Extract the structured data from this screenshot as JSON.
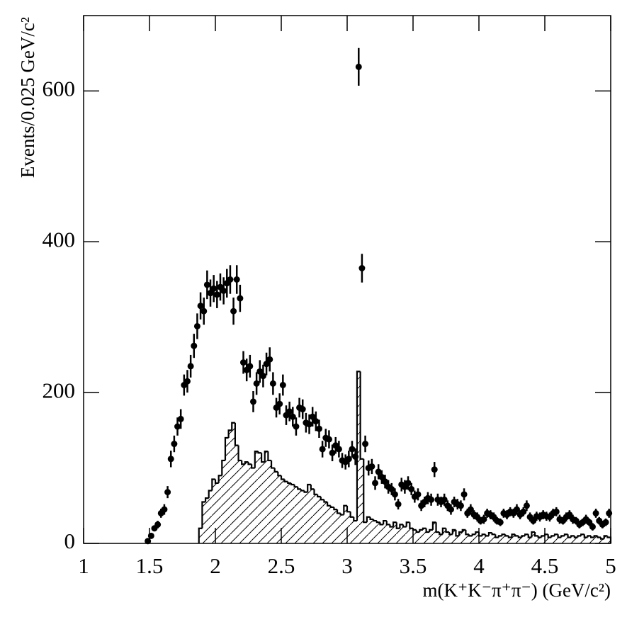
{
  "chart_data": [
    {
      "type": "histogram",
      "xlabel": "m(K⁺K⁻π⁺π⁻) (GeV/c²)",
      "ylabel": "Events/0.025 GeV/c²",
      "xlim": [
        1,
        5
      ],
      "ylim": [
        0,
        700
      ],
      "xticks": [
        1,
        1.5,
        2,
        2.5,
        3,
        3.5,
        4,
        4.5,
        5
      ],
      "yticks": [
        0,
        200,
        400,
        600
      ],
      "color": "#000000",
      "bins": [
        1.875,
        1.9,
        1.925,
        1.95,
        1.975,
        2,
        2.025,
        2.05,
        2.075,
        2.1,
        2.125,
        2.15,
        2.175,
        2.2,
        2.225,
        2.25,
        2.275,
        2.3,
        2.325,
        2.35,
        2.375,
        2.4,
        2.425,
        2.45,
        2.475,
        2.5,
        2.525,
        2.55,
        2.575,
        2.6,
        2.625,
        2.65,
        2.675,
        2.7,
        2.725,
        2.75,
        2.775,
        2.8,
        2.825,
        2.85,
        2.875,
        2.9,
        2.925,
        2.95,
        2.975,
        3,
        3.025,
        3.05,
        3.075,
        3.1,
        3.125,
        3.15,
        3.175,
        3.2,
        3.225,
        3.25,
        3.275,
        3.3,
        3.325,
        3.35,
        3.375,
        3.4,
        3.425,
        3.45,
        3.475,
        3.5,
        3.525,
        3.55,
        3.575,
        3.6,
        3.625,
        3.65,
        3.675,
        3.7,
        3.725,
        3.75,
        3.775,
        3.8,
        3.825,
        3.85,
        3.875,
        3.9,
        3.925,
        3.95,
        3.975,
        4,
        4.025,
        4.05,
        4.075,
        4.1,
        4.125,
        4.15,
        4.175,
        4.2,
        4.225,
        4.25,
        4.275,
        4.3,
        4.325,
        4.35,
        4.375,
        4.4,
        4.425,
        4.45,
        4.475,
        4.5,
        4.525,
        4.55,
        4.575,
        4.6,
        4.625,
        4.65,
        4.675,
        4.7,
        4.725,
        4.75,
        4.775,
        4.8,
        4.825,
        4.85,
        4.875,
        4.9,
        4.925,
        4.95,
        4.975,
        5
      ],
      "counts": [
        20,
        55,
        60,
        70,
        85,
        80,
        90,
        110,
        140,
        150,
        160,
        130,
        110,
        105,
        108,
        105,
        100,
        122,
        120,
        108,
        122,
        110,
        100,
        95,
        90,
        85,
        82,
        80,
        78,
        75,
        72,
        70,
        68,
        78,
        72,
        65,
        62,
        58,
        55,
        50,
        48,
        45,
        40,
        38,
        50,
        42,
        35,
        30,
        228,
        112,
        28,
        35,
        32,
        30,
        28,
        25,
        30,
        25,
        22,
        28,
        20,
        25,
        22,
        28,
        20,
        18,
        15,
        18,
        20,
        15,
        18,
        28,
        15,
        12,
        20,
        15,
        12,
        18,
        10,
        15,
        18,
        12,
        10,
        12,
        15,
        10,
        12,
        10,
        14,
        12,
        8,
        10,
        12,
        10,
        8,
        12,
        10,
        8,
        10,
        12,
        8,
        15,
        10,
        8,
        10,
        12,
        8,
        10,
        12,
        8,
        10,
        12,
        8,
        10,
        8,
        10,
        12,
        8,
        10,
        8,
        10,
        8,
        6,
        10,
        8
      ]
    },
    {
      "type": "errorbar",
      "color": "#000000",
      "x": [
        1.4875,
        1.5125,
        1.5375,
        1.5625,
        1.5875,
        1.6125,
        1.6375,
        1.6625,
        1.6875,
        1.7125,
        1.7375,
        1.7625,
        1.7875,
        1.8125,
        1.8375,
        1.8625,
        1.8875,
        1.9125,
        1.9375,
        1.9625,
        1.9875,
        2.0125,
        2.0375,
        2.0625,
        2.0875,
        2.1125,
        2.1375,
        2.1625,
        2.1875,
        2.2125,
        2.2375,
        2.2625,
        2.2875,
        2.3125,
        2.3375,
        2.3625,
        2.3875,
        2.4125,
        2.4375,
        2.4625,
        2.4875,
        2.5125,
        2.5375,
        2.5625,
        2.5875,
        2.6125,
        2.6375,
        2.6625,
        2.6875,
        2.7125,
        2.7375,
        2.7625,
        2.7875,
        2.8125,
        2.8375,
        2.8625,
        2.8875,
        2.9125,
        2.9375,
        2.9625,
        2.9875,
        3.0125,
        3.0375,
        3.0625,
        3.0875,
        3.1125,
        3.1375,
        3.1625,
        3.1875,
        3.2125,
        3.2375,
        3.2625,
        3.2875,
        3.3125,
        3.3375,
        3.3625,
        3.3875,
        3.4125,
        3.4375,
        3.4625,
        3.4875,
        3.5125,
        3.5375,
        3.5625,
        3.5875,
        3.6125,
        3.6375,
        3.6625,
        3.6875,
        3.7125,
        3.7375,
        3.7625,
        3.7875,
        3.8125,
        3.8375,
        3.8625,
        3.8875,
        3.9125,
        3.9375,
        3.9625,
        3.9875,
        4.0125,
        4.0375,
        4.0625,
        4.0875,
        4.1125,
        4.1375,
        4.1625,
        4.1875,
        4.2125,
        4.2375,
        4.2625,
        4.2875,
        4.3125,
        4.3375,
        4.3625,
        4.3875,
        4.4125,
        4.4375,
        4.4625,
        4.4875,
        4.5125,
        4.5375,
        4.5625,
        4.5875,
        4.6125,
        4.6375,
        4.6625,
        4.6875,
        4.7125,
        4.7375,
        4.7625,
        4.7875,
        4.8125,
        4.8375,
        4.8625,
        4.8875,
        4.9125,
        4.9375,
        4.9625,
        4.9875
      ],
      "values": [
        3,
        10,
        20,
        25,
        40,
        45,
        68,
        112,
        132,
        155,
        165,
        210,
        215,
        235,
        262,
        288,
        315,
        308,
        343,
        332,
        338,
        330,
        340,
        335,
        345,
        350,
        308,
        350,
        325,
        240,
        230,
        235,
        188,
        212,
        228,
        222,
        238,
        244,
        212,
        180,
        185,
        210,
        170,
        175,
        168,
        155,
        180,
        178,
        160,
        158,
        168,
        162,
        152,
        125,
        140,
        138,
        120,
        130,
        125,
        110,
        108,
        112,
        125,
        115,
        632,
        365,
        132,
        100,
        102,
        80,
        95,
        88,
        82,
        75,
        72,
        65,
        52,
        78,
        75,
        80,
        72,
        62,
        65,
        50,
        55,
        60,
        58,
        98,
        58,
        55,
        58,
        50,
        45,
        55,
        52,
        50,
        65,
        40,
        45,
        38,
        35,
        30,
        32,
        40,
        38,
        35,
        30,
        28,
        40,
        38,
        42,
        40,
        45,
        38,
        42,
        50,
        35,
        30,
        36,
        35,
        38,
        36,
        35,
        40,
        42,
        32,
        30,
        35,
        38,
        32,
        30,
        25,
        28,
        32,
        28,
        22,
        40,
        30,
        25,
        28,
        40
      ],
      "errors": [
        2,
        3,
        4,
        5,
        6,
        7,
        8,
        11,
        11,
        12,
        13,
        14,
        15,
        15,
        16,
        17,
        18,
        18,
        19,
        18,
        18,
        18,
        18,
        18,
        19,
        19,
        18,
        19,
        18,
        15,
        15,
        15,
        14,
        15,
        15,
        15,
        15,
        16,
        15,
        13,
        14,
        14,
        13,
        13,
        13,
        12,
        13,
        13,
        13,
        13,
        13,
        13,
        12,
        11,
        12,
        12,
        11,
        11,
        11,
        10,
        10,
        11,
        11,
        11,
        25,
        19,
        11,
        10,
        10,
        9,
        10,
        9,
        9,
        9,
        8,
        8,
        7,
        9,
        9,
        9,
        8,
        8,
        8,
        7,
        7,
        8,
        8,
        10,
        8,
        7,
        8,
        7,
        7,
        7,
        7,
        7,
        8,
        6,
        7,
        6,
        6,
        5,
        6,
        6,
        6,
        6,
        5,
        5,
        6,
        6,
        6,
        6,
        7,
        6,
        6,
        7,
        6,
        5,
        6,
        6,
        6,
        6,
        6,
        6,
        6,
        6,
        5,
        6,
        6,
        6,
        5,
        5,
        5,
        6,
        5,
        5,
        6,
        5,
        5,
        5,
        6
      ]
    }
  ]
}
